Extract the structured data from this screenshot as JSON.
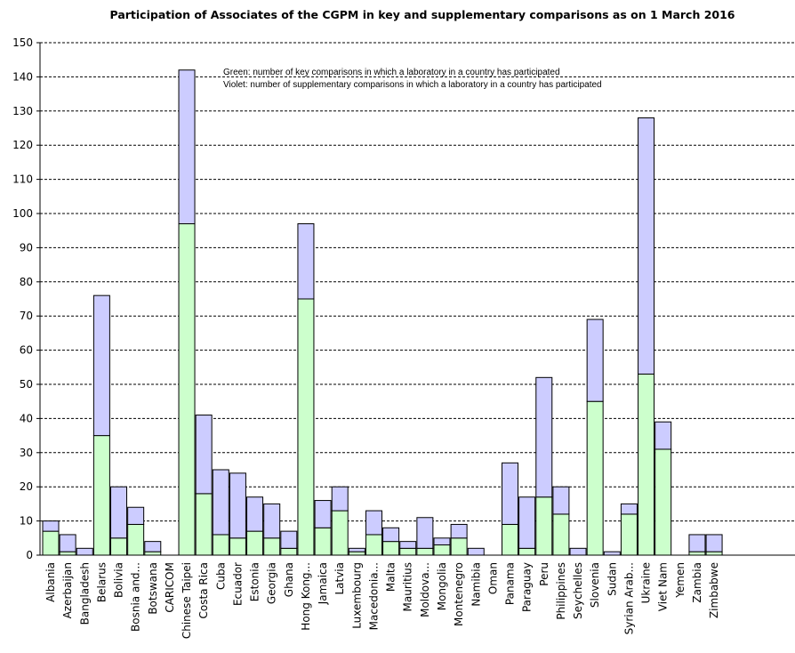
{
  "chart_data": {
    "type": "bar",
    "stacked": true,
    "title": "Participation of Associates of the CGPM in key and supplementary comparisons as on 1 March 2016",
    "xlabel": "",
    "ylabel": "",
    "ylim": [
      0,
      150
    ],
    "ytick_step": 10,
    "grid": true,
    "categories": [
      "Albania",
      "Azerbaijan",
      "Bangladesh",
      "Belarus",
      "Bolivia",
      "Bosnia and...",
      "Botswana",
      "CARICOM",
      "Chinese Taipei",
      "Costa Rica",
      "Cuba",
      "Ecuador",
      "Estonia",
      "Georgia",
      "Ghana",
      "Hong Kong...",
      "Jamaica",
      "Latvia",
      "Luxembourg",
      "Macedonia...",
      "Malta",
      "Mauritius",
      "Moldova...",
      "Mongolia",
      "Montenegro",
      "Namibia",
      "Oman",
      "Panama",
      "Paraguay",
      "Peru",
      "Philippines",
      "Seychelles",
      "Slovenia",
      "Sudan",
      "Syrian Arab...",
      "Ukraine",
      "Viet Nam",
      "Yemen",
      "Zambia",
      "Zimbabwe"
    ],
    "series": [
      {
        "color": "#ccffcc",
        "values": [
          7,
          1,
          0,
          35,
          5,
          9,
          1,
          0,
          97,
          18,
          6,
          5,
          7,
          5,
          2,
          75,
          8,
          13,
          1,
          6,
          4,
          2,
          2,
          3,
          5,
          0,
          0,
          9,
          2,
          17,
          12,
          0,
          45,
          0,
          12,
          53,
          31,
          0,
          1,
          1
        ]
      },
      {
        "color": "#ccccff",
        "values": [
          3,
          5,
          2,
          41,
          15,
          5,
          3,
          0,
          45,
          23,
          19,
          19,
          10,
          10,
          5,
          22,
          8,
          7,
          1,
          7,
          4,
          2,
          9,
          2,
          4,
          2,
          0,
          18,
          15,
          35,
          8,
          2,
          24,
          1,
          3,
          75,
          8,
          0,
          5,
          5
        ]
      }
    ],
    "annotations": [
      "Green: number of key comparisons in which a laboratory in a country has participated",
      "Violet: number of supplementary comparisons in which a laboratory in a country has participated"
    ]
  }
}
